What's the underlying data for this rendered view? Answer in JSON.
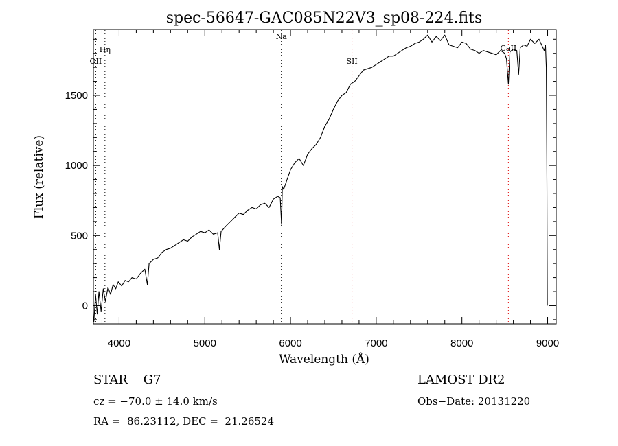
{
  "chart_data": {
    "type": "line",
    "title": "spec-56647-GAC085N22V3_sp08-224.fits",
    "xlabel": "Wavelength (Å)",
    "ylabel": "Flux (relative)",
    "xlim": [
      3700,
      9100
    ],
    "ylim": [
      -130,
      1970
    ],
    "x_ticks": [
      4000,
      5000,
      6000,
      7000,
      8000,
      9000
    ],
    "x_tick_labels": [
      "4000",
      "5000",
      "6000",
      "7000",
      "8000",
      "9000"
    ],
    "y_ticks": [
      0,
      500,
      1000,
      1500
    ],
    "y_tick_labels": [
      "0",
      "500",
      "1000",
      "1500"
    ],
    "grid": false,
    "series": [
      {
        "x": [
          3705,
          3725,
          3745,
          3765,
          3790,
          3815,
          3840,
          3870,
          3900,
          3930,
          3960,
          3990,
          4030,
          4070,
          4110,
          4150,
          4200,
          4250,
          4300,
          4330,
          4350,
          4400,
          4450,
          4500,
          4550,
          4600,
          4650,
          4700,
          4750,
          4800,
          4850,
          4900,
          4950,
          5000,
          5050,
          5100,
          5150,
          5170,
          5190,
          5250,
          5300,
          5350,
          5400,
          5450,
          5500,
          5550,
          5600,
          5650,
          5700,
          5750,
          5800,
          5850,
          5880,
          5895,
          5905,
          5920,
          5960,
          6000,
          6050,
          6100,
          6150,
          6200,
          6250,
          6300,
          6350,
          6400,
          6450,
          6500,
          6550,
          6600,
          6650,
          6700,
          6750,
          6800,
          6850,
          6900,
          6950,
          7000,
          7050,
          7100,
          7150,
          7200,
          7250,
          7300,
          7350,
          7400,
          7450,
          7500,
          7550,
          7600,
          7650,
          7700,
          7750,
          7800,
          7850,
          7900,
          7950,
          8000,
          8050,
          8100,
          8150,
          8200,
          8250,
          8300,
          8350,
          8400,
          8450,
          8498,
          8520,
          8542,
          8560,
          8600,
          8640,
          8662,
          8680,
          8720,
          8760,
          8800,
          8850,
          8900,
          8930,
          8960,
          8975,
          8985,
          8992,
          8997
        ],
        "y": [
          -120,
          80,
          -60,
          100,
          -40,
          120,
          30,
          130,
          80,
          150,
          120,
          170,
          140,
          180,
          170,
          200,
          190,
          230,
          260,
          150,
          300,
          330,
          340,
          380,
          400,
          410,
          430,
          450,
          470,
          460,
          490,
          510,
          530,
          520,
          540,
          510,
          520,
          400,
          530,
          570,
          600,
          630,
          660,
          650,
          680,
          700,
          690,
          720,
          730,
          700,
          760,
          780,
          770,
          580,
          850,
          830,
          900,
          970,
          1020,
          1050,
          1000,
          1080,
          1120,
          1150,
          1200,
          1280,
          1330,
          1400,
          1460,
          1500,
          1520,
          1580,
          1600,
          1640,
          1680,
          1690,
          1700,
          1720,
          1740,
          1760,
          1780,
          1780,
          1800,
          1820,
          1840,
          1850,
          1870,
          1880,
          1900,
          1930,
          1880,
          1920,
          1890,
          1930,
          1860,
          1850,
          1840,
          1880,
          1870,
          1830,
          1820,
          1800,
          1820,
          1810,
          1800,
          1790,
          1820,
          1800,
          1760,
          1580,
          1810,
          1830,
          1820,
          1650,
          1840,
          1860,
          1850,
          1900,
          1870,
          1900,
          1860,
          1820,
          1860,
          1700,
          880,
          0
        ]
      }
    ],
    "lines": [
      {
        "label": "OII",
        "x": 3727,
        "color": "#000000"
      },
      {
        "label": "Hη",
        "x": 3835,
        "color": "#000000"
      },
      {
        "label": "Na",
        "x": 5893,
        "color": "#000000"
      },
      {
        "label": "SII",
        "x": 6717,
        "color": "#e00000"
      },
      {
        "label": "CaII",
        "x": 8542,
        "color": "#e00000"
      }
    ]
  },
  "info": {
    "object": "STAR    G7",
    "cz": "cz = −70.0 ± 14.0 km/s",
    "coords": "RA =  86.23112, DEC =  21.26524",
    "survey": "LAMOST DR2",
    "obs_date": "Obs−Date: 20131220"
  }
}
